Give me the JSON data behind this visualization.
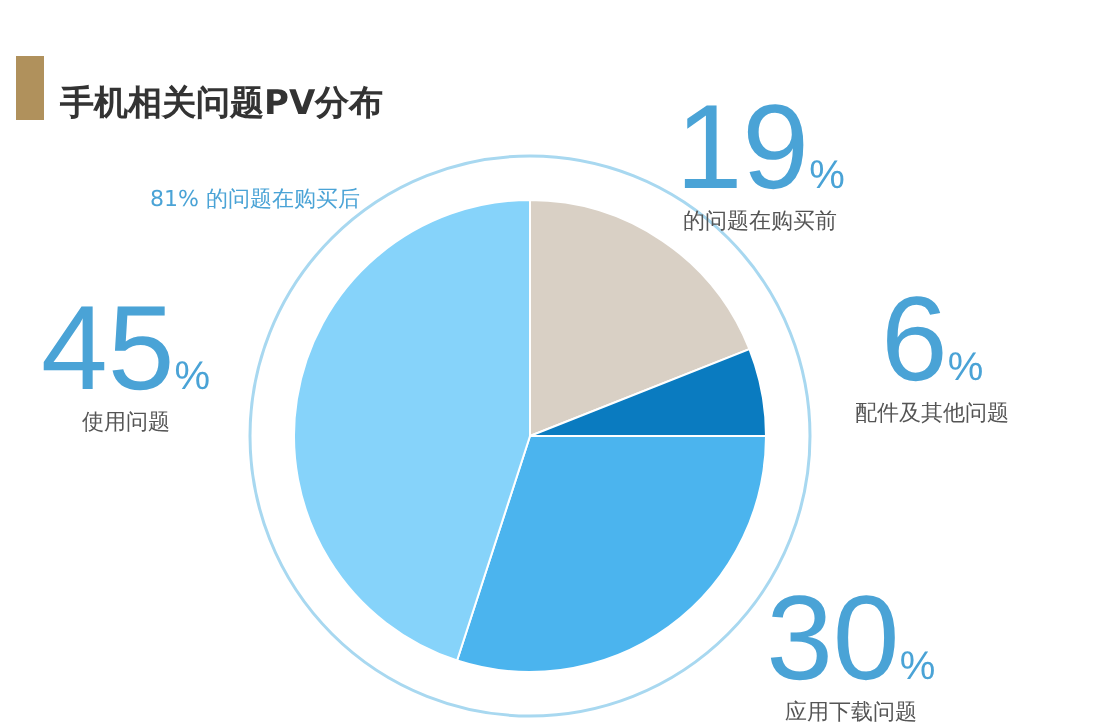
{
  "chart_data": {
    "type": "pie",
    "title": "手机相关问题PV分布",
    "categories": [
      "的问题在购买前",
      "配件及其他问题",
      "应用下载问题",
      "使用问题"
    ],
    "values": [
      19,
      6,
      30,
      45
    ],
    "colors": [
      "#d9d0c5",
      "#0a7bc0",
      "#4bb4ee",
      "#86d3fa"
    ],
    "value_labels": [
      "19%",
      "6%",
      "30%",
      "45%"
    ],
    "annotations": [
      "81% 的问题在购买后"
    ]
  }
}
